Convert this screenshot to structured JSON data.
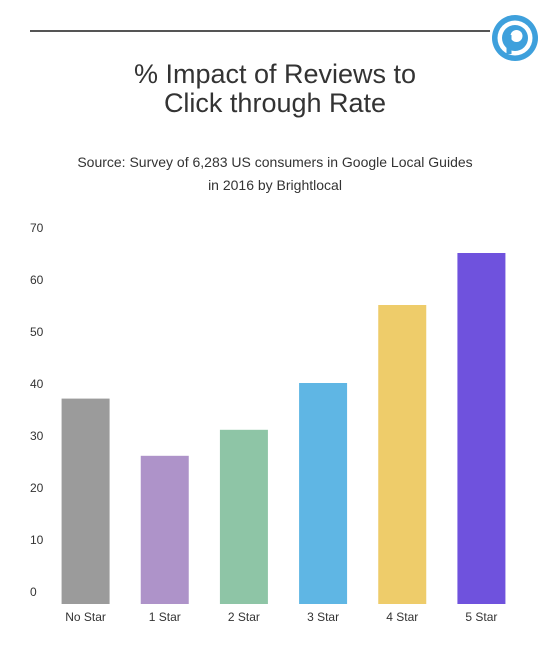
{
  "header": {
    "logo_icon": "p-badge-icon",
    "logo_color": "#3ea0dc"
  },
  "chart_data": {
    "type": "bar",
    "title": [
      "% Impact of Reviews to",
      "Click through Rate"
    ],
    "subtitle": [
      "Source: Survey of 6,283 US consumers in Google Local Guides",
      "in 2016 by Brightlocal"
    ],
    "xlabel": "",
    "ylabel": "",
    "ylim": [
      0,
      70
    ],
    "yticks": [
      0,
      10,
      20,
      30,
      40,
      50,
      60,
      70
    ],
    "grid": false,
    "legend": "none",
    "categories": [
      "No Star",
      "1 Star",
      "2 Star",
      "3 Star",
      "4 Star",
      "5 Star"
    ],
    "values": [
      39.5,
      28.5,
      33.5,
      42.5,
      57.5,
      67.5
    ],
    "colors": [
      "#9b9b9b",
      "#ae93c9",
      "#8ec5a6",
      "#5fb6e4",
      "#eecc6a",
      "#6f52dd"
    ]
  }
}
